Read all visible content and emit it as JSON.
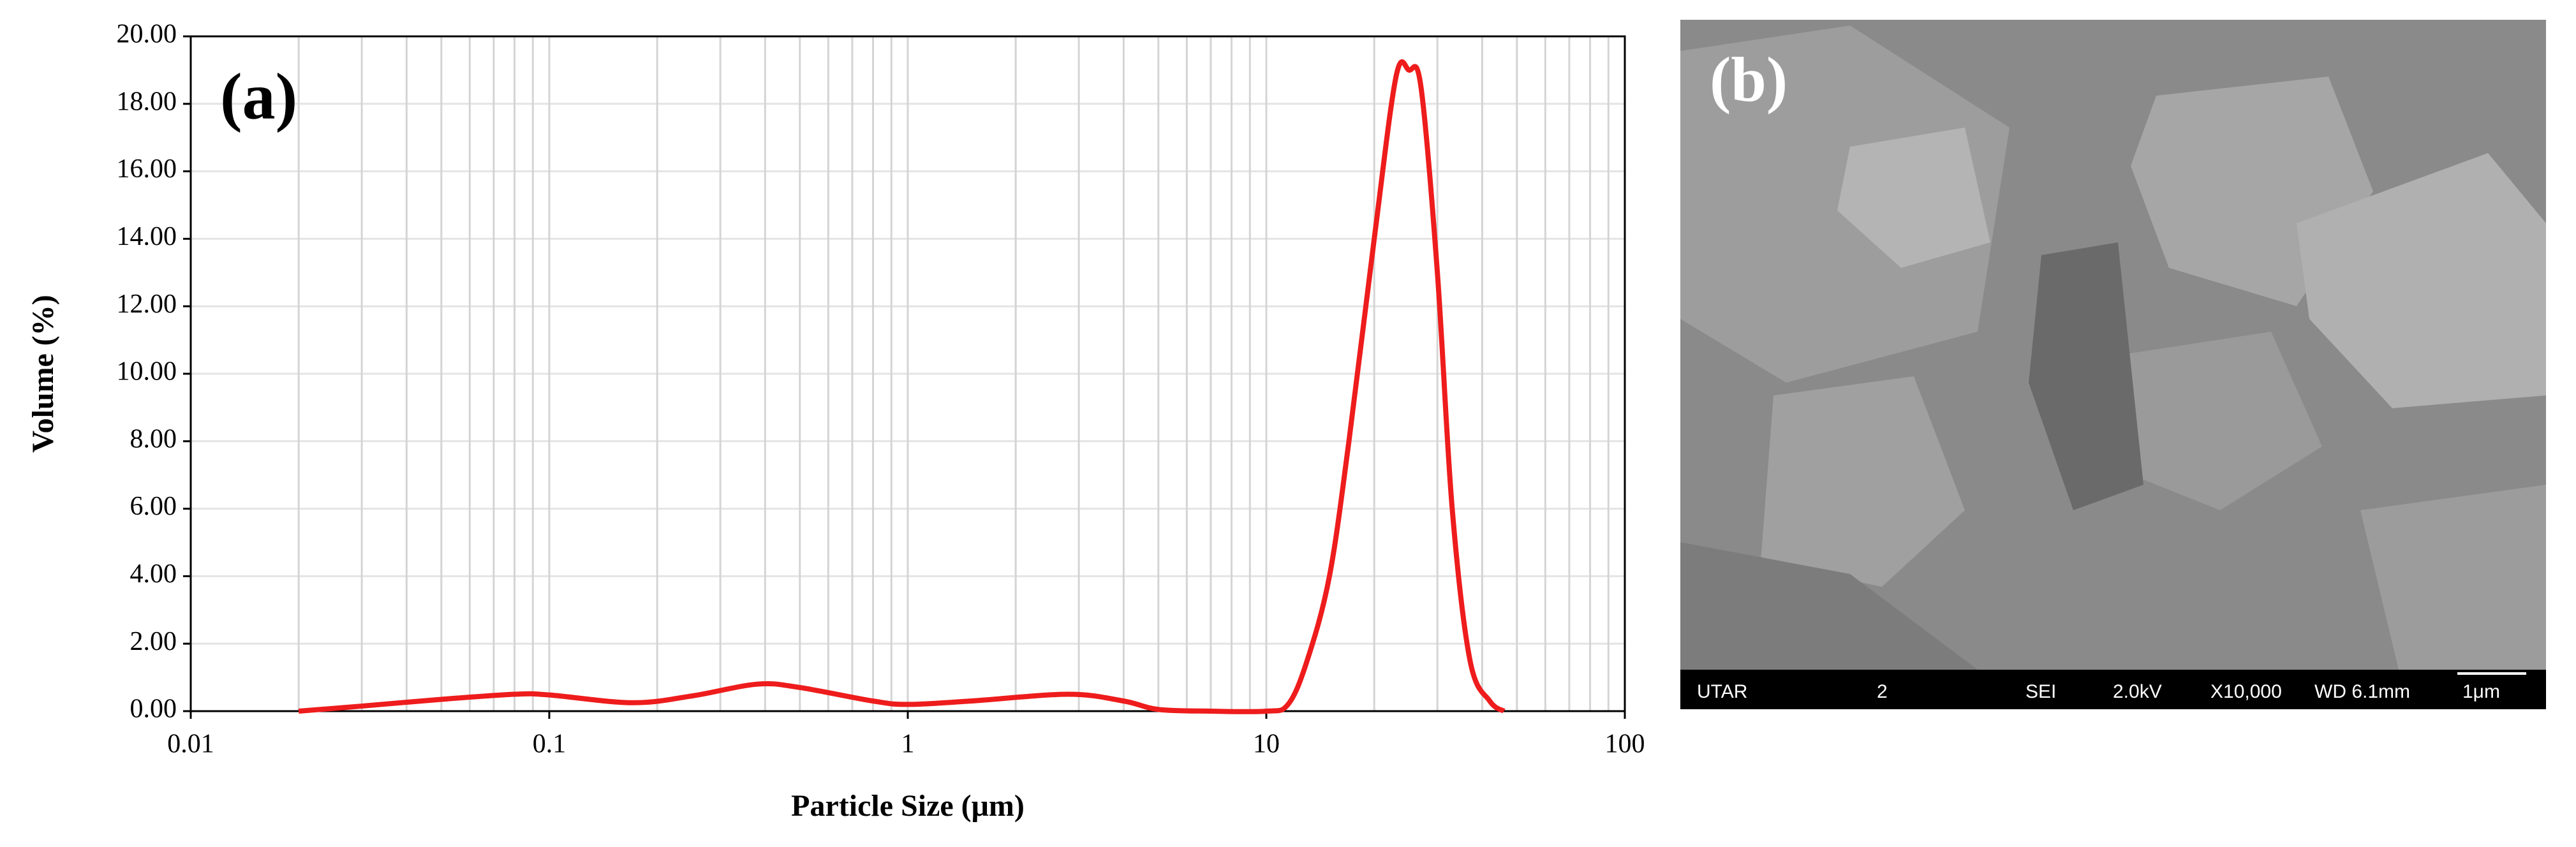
{
  "chart_data": {
    "type": "line",
    "annotation": "(a)",
    "xlabel": "Particle Size (μm)",
    "ylabel": "Volume (%)",
    "log_x": true,
    "xlim": [
      0.01,
      100
    ],
    "xticks": [
      0.01,
      0.1,
      1,
      10,
      100
    ],
    "ylim": [
      0,
      20
    ],
    "yticks": [
      {
        "value": 0,
        "label": "0.00"
      },
      {
        "value": 2,
        "label": "2.00"
      },
      {
        "value": 4,
        "label": "4.00"
      },
      {
        "value": 6,
        "label": "6.00"
      },
      {
        "value": 8,
        "label": "8.00"
      },
      {
        "value": 10,
        "label": "10.00"
      },
      {
        "value": 12,
        "label": "12.00"
      },
      {
        "value": 14,
        "label": "14.00"
      },
      {
        "value": 16,
        "label": "16.00"
      },
      {
        "value": 18,
        "label": "18.00"
      },
      {
        "value": 20,
        "label": "20.00"
      }
    ],
    "grid": true,
    "x": [
      0.02,
      0.03,
      0.05,
      0.08,
      0.1,
      0.17,
      0.25,
      0.38,
      0.5,
      0.8,
      1,
      1.5,
      2.8,
      4,
      5,
      7,
      10,
      11.5,
      13,
      15,
      17,
      20,
      23,
      25,
      27,
      30,
      33,
      37,
      42,
      46
    ],
    "series": [
      {
        "color": "#ee1c1c",
        "values": [
          0,
          0.15,
          0.35,
          0.5,
          0.48,
          0.25,
          0.45,
          0.8,
          0.7,
          0.3,
          0.2,
          0.3,
          0.5,
          0.3,
          0.05,
          0,
          0,
          0.2,
          1.5,
          4,
          8,
          14,
          18.8,
          19,
          18.5,
          13,
          6,
          1.5,
          0.3,
          0
        ]
      }
    ]
  },
  "image_panel": {
    "label": "(b)",
    "info_bar": [
      "UTAR",
      "2",
      "SEI",
      "2.0kV",
      "X10,000",
      "WD 6.1mm",
      "1μm"
    ]
  }
}
